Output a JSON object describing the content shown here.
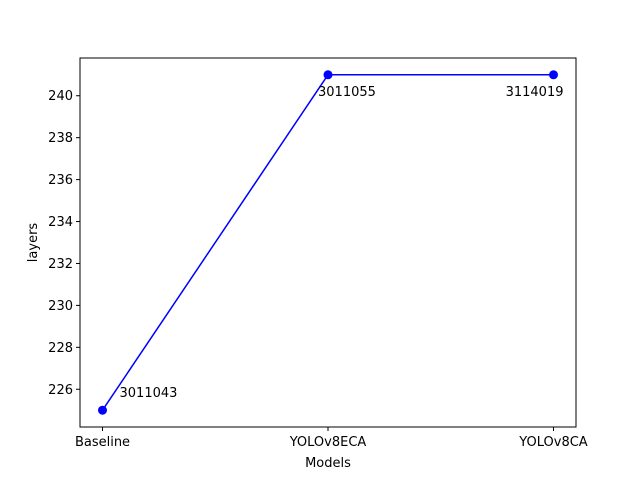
{
  "chart_data": {
    "type": "line",
    "categories": [
      "Baseline",
      "YOLOv8ECA",
      "YOLOv8CA"
    ],
    "series": [
      {
        "values": [
          225,
          241,
          241
        ],
        "color": "#0000ff",
        "marker": "circle"
      }
    ],
    "data_labels": [
      "3011043",
      "3011055",
      "3114019"
    ],
    "xlabel": "Models",
    "ylabel": "layers",
    "ylim": [
      224.2,
      241.8
    ],
    "yticks": [
      226,
      228,
      230,
      232,
      234,
      236,
      238,
      240
    ],
    "grid": false
  }
}
